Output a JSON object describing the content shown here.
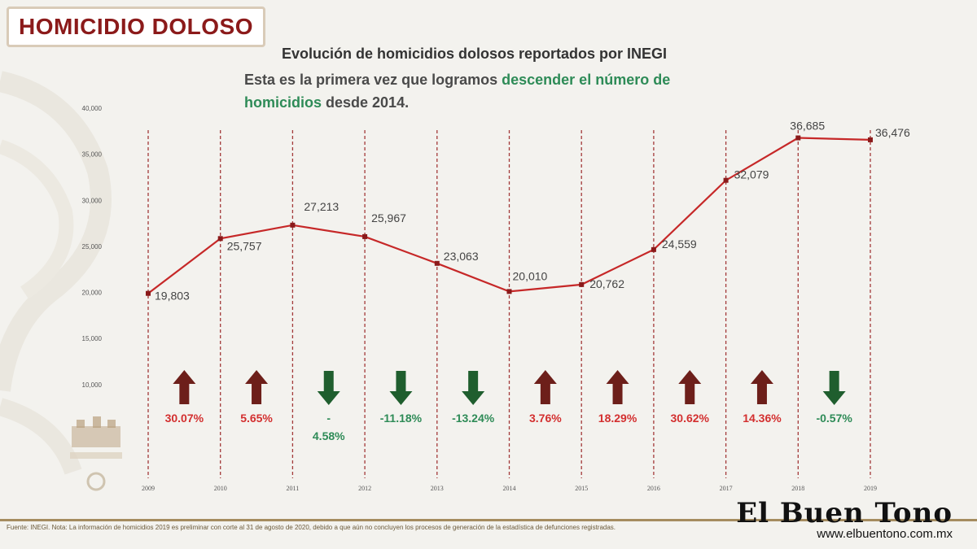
{
  "header": {
    "title": "HOMICIDIO DOLOSO"
  },
  "chart_data": {
    "type": "line",
    "title": "Evolución de homicidios dolosos reportados por INEGI",
    "subtitle_parts": [
      {
        "text": "Esta es la primera vez que logramos ",
        "highlight": false
      },
      {
        "text": "descender el número de homicidios",
        "highlight": true
      },
      {
        "text": " desde 2014.",
        "highlight": false
      }
    ],
    "x": [
      "2009",
      "2010",
      "2011",
      "2012",
      "2013",
      "2014",
      "2015",
      "2016",
      "2017",
      "2018",
      "2019"
    ],
    "values": [
      19803,
      25757,
      27213,
      25967,
      23063,
      20010,
      20762,
      24559,
      32079,
      36685,
      36476
    ],
    "value_labels": [
      "19,803",
      "25,757",
      "27,213",
      "25,967",
      "23,063",
      "20,010",
      "20,762",
      "24,559",
      "32,079",
      "36,685",
      "36,476"
    ],
    "ylim": [
      0,
      40000
    ],
    "y_ticks": [
      "10,000",
      "15,000",
      "20,000",
      "25,000",
      "30,000",
      "35,000",
      "40,000"
    ],
    "y_tick_values": [
      10000,
      15000,
      20000,
      25000,
      30000,
      35000,
      40000
    ],
    "changes": [
      {
        "label": "30.07%",
        "direction": "up"
      },
      {
        "label": "5.65%",
        "direction": "up"
      },
      {
        "label": "-\n4.58%",
        "direction": "down"
      },
      {
        "label": "-11.18%",
        "direction": "down"
      },
      {
        "label": "-13.24%",
        "direction": "down"
      },
      {
        "label": "3.76%",
        "direction": "up"
      },
      {
        "label": "18.29%",
        "direction": "up"
      },
      {
        "label": "30.62%",
        "direction": "up"
      },
      {
        "label": "14.36%",
        "direction": "up"
      },
      {
        "label": "-0.57%",
        "direction": "down"
      }
    ],
    "colors": {
      "line": "#c62828",
      "marker": "#8b1a1a",
      "up_arrow": "#6d1f1a",
      "down_arrow": "#1f5e2e",
      "up_text": "#d32f2f",
      "down_text": "#2e8b57",
      "gridline": "#a33a3a"
    }
  },
  "footnote": "Fuente: INEGI. Nota: La información de homicidios 2019 es preliminar con corte al 31 de agosto de 2020, debido a que aún no concluyen los procesos de generación de la estadística de defunciones registradas.",
  "brand": {
    "name": "El Buen Tono",
    "url": "www.elbuentono.com.mx"
  }
}
